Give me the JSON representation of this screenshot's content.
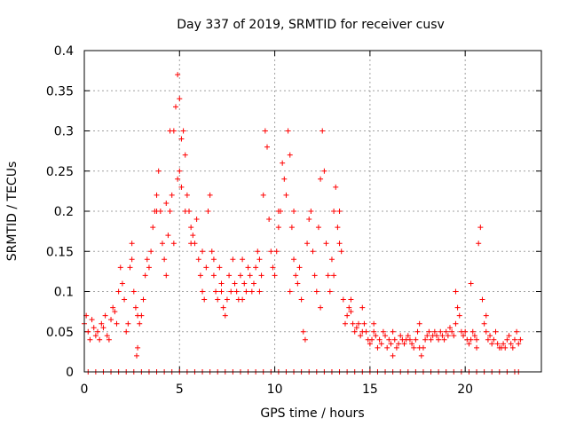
{
  "chart_data": {
    "type": "scatter",
    "title": "Day 337 of 2019, SRMTID for receiver cusv",
    "xlabel": "GPS time / hours",
    "ylabel": "SRMTID / TECUs",
    "xlim": [
      0,
      24
    ],
    "ylim": [
      0,
      0.4
    ],
    "xticks": [
      0,
      5,
      10,
      15,
      20
    ],
    "yticks": [
      0,
      0.05,
      0.1,
      0.15,
      0.2,
      0.25,
      0.3,
      0.35,
      0.4
    ],
    "xtick_labels": [
      "0",
      "5",
      "10",
      "15",
      "20"
    ],
    "ytick_labels": [
      "0",
      "0.05",
      "0.1",
      "0.15",
      "0.2",
      "0.25",
      "0.3",
      "0.35",
      "0.4"
    ],
    "grid": true,
    "marker": "+",
    "color": "#ff0000",
    "series": [
      {
        "name": "SRMTID",
        "points": [
          [
            0.0,
            0.06
          ],
          [
            0.1,
            0.07
          ],
          [
            0.2,
            0.05
          ],
          [
            0.3,
            0.04
          ],
          [
            0.4,
            0.065
          ],
          [
            0.5,
            0.055
          ],
          [
            0.6,
            0.045
          ],
          [
            0.7,
            0.05
          ],
          [
            0.8,
            0.04
          ],
          [
            0.9,
            0.06
          ],
          [
            1.0,
            0.055
          ],
          [
            1.1,
            0.07
          ],
          [
            1.2,
            0.045
          ],
          [
            1.3,
            0.04
          ],
          [
            1.4,
            0.065
          ],
          [
            1.5,
            0.08
          ],
          [
            1.6,
            0.075
          ],
          [
            1.7,
            0.06
          ],
          [
            1.8,
            0.1
          ],
          [
            1.9,
            0.13
          ],
          [
            2.0,
            0.11
          ],
          [
            2.1,
            0.09
          ],
          [
            2.2,
            0.05
          ],
          [
            2.3,
            0.06
          ],
          [
            2.4,
            0.13
          ],
          [
            2.5,
            0.14
          ],
          [
            2.6,
            0.1
          ],
          [
            2.7,
            0.08
          ],
          [
            2.8,
            0.07
          ],
          [
            2.9,
            0.06
          ],
          [
            3.0,
            0.07
          ],
          [
            3.1,
            0.09
          ],
          [
            3.2,
            0.12
          ],
          [
            3.3,
            0.14
          ],
          [
            3.4,
            0.13
          ],
          [
            3.5,
            0.15
          ],
          [
            3.6,
            0.18
          ],
          [
            3.7,
            0.2
          ],
          [
            3.8,
            0.22
          ],
          [
            3.9,
            0.25
          ],
          [
            4.0,
            0.2
          ],
          [
            4.1,
            0.16
          ],
          [
            4.2,
            0.14
          ],
          [
            4.3,
            0.12
          ],
          [
            4.4,
            0.17
          ],
          [
            4.5,
            0.2
          ],
          [
            4.6,
            0.22
          ],
          [
            4.7,
            0.3
          ],
          [
            4.8,
            0.33
          ],
          [
            4.9,
            0.37
          ],
          [
            5.0,
            0.34
          ],
          [
            5.1,
            0.29
          ],
          [
            5.2,
            0.3
          ],
          [
            5.3,
            0.27
          ],
          [
            5.4,
            0.22
          ],
          [
            5.5,
            0.2
          ],
          [
            5.6,
            0.18
          ],
          [
            5.7,
            0.17
          ],
          [
            5.8,
            0.16
          ],
          [
            5.9,
            0.19
          ],
          [
            6.0,
            0.14
          ],
          [
            6.1,
            0.12
          ],
          [
            6.2,
            0.1
          ],
          [
            6.3,
            0.09
          ],
          [
            6.4,
            0.13
          ],
          [
            6.5,
            0.2
          ],
          [
            6.6,
            0.22
          ],
          [
            6.7,
            0.15
          ],
          [
            6.8,
            0.12
          ],
          [
            6.9,
            0.1
          ],
          [
            7.0,
            0.09
          ],
          [
            7.1,
            0.13
          ],
          [
            7.2,
            0.11
          ],
          [
            7.3,
            0.08
          ],
          [
            7.4,
            0.07
          ],
          [
            7.5,
            0.09
          ],
          [
            7.6,
            0.12
          ],
          [
            7.7,
            0.1
          ],
          [
            7.8,
            0.14
          ],
          [
            7.9,
            0.11
          ],
          [
            8.0,
            0.1
          ],
          [
            8.1,
            0.09
          ],
          [
            8.2,
            0.12
          ],
          [
            8.3,
            0.14
          ],
          [
            8.4,
            0.11
          ],
          [
            8.5,
            0.1
          ],
          [
            8.6,
            0.13
          ],
          [
            8.7,
            0.12
          ],
          [
            8.8,
            0.1
          ],
          [
            8.9,
            0.11
          ],
          [
            9.0,
            0.13
          ],
          [
            9.1,
            0.15
          ],
          [
            9.2,
            0.14
          ],
          [
            9.3,
            0.12
          ],
          [
            9.4,
            0.22
          ],
          [
            9.5,
            0.3
          ],
          [
            9.6,
            0.28
          ],
          [
            9.7,
            0.19
          ],
          [
            9.8,
            0.15
          ],
          [
            9.9,
            0.13
          ],
          [
            10.0,
            0.12
          ],
          [
            10.1,
            0.15
          ],
          [
            10.2,
            0.18
          ],
          [
            10.3,
            0.2
          ],
          [
            10.4,
            0.26
          ],
          [
            10.5,
            0.24
          ],
          [
            10.6,
            0.22
          ],
          [
            10.7,
            0.3
          ],
          [
            10.8,
            0.27
          ],
          [
            10.9,
            0.18
          ],
          [
            11.0,
            0.14
          ],
          [
            11.1,
            0.12
          ],
          [
            11.2,
            0.11
          ],
          [
            11.3,
            0.13
          ],
          [
            11.4,
            0.09
          ],
          [
            11.5,
            0.05
          ],
          [
            11.6,
            0.04
          ],
          [
            11.7,
            0.16
          ],
          [
            11.8,
            0.19
          ],
          [
            11.9,
            0.2
          ],
          [
            12.0,
            0.15
          ],
          [
            12.1,
            0.12
          ],
          [
            12.2,
            0.1
          ],
          [
            12.3,
            0.18
          ],
          [
            12.4,
            0.24
          ],
          [
            12.5,
            0.3
          ],
          [
            12.6,
            0.25
          ],
          [
            12.7,
            0.16
          ],
          [
            12.8,
            0.12
          ],
          [
            12.9,
            0.1
          ],
          [
            13.0,
            0.14
          ],
          [
            13.1,
            0.2
          ],
          [
            13.2,
            0.23
          ],
          [
            13.3,
            0.18
          ],
          [
            13.4,
            0.16
          ],
          [
            13.5,
            0.15
          ],
          [
            13.6,
            0.09
          ],
          [
            13.7,
            0.06
          ],
          [
            13.8,
            0.07
          ],
          [
            13.9,
            0.08
          ],
          [
            14.0,
            0.075
          ],
          [
            14.1,
            0.06
          ],
          [
            14.2,
            0.05
          ],
          [
            14.3,
            0.055
          ],
          [
            14.4,
            0.06
          ],
          [
            14.5,
            0.045
          ],
          [
            14.6,
            0.05
          ],
          [
            14.7,
            0.06
          ],
          [
            14.8,
            0.05
          ],
          [
            14.9,
            0.04
          ],
          [
            15.0,
            0.035
          ],
          [
            15.1,
            0.04
          ],
          [
            15.2,
            0.05
          ],
          [
            15.3,
            0.045
          ],
          [
            15.4,
            0.03
          ],
          [
            15.5,
            0.04
          ],
          [
            15.6,
            0.035
          ],
          [
            15.7,
            0.05
          ],
          [
            15.8,
            0.045
          ],
          [
            15.9,
            0.03
          ],
          [
            16.0,
            0.04
          ],
          [
            16.1,
            0.035
          ],
          [
            16.2,
            0.05
          ],
          [
            16.3,
            0.04
          ],
          [
            16.4,
            0.03
          ],
          [
            16.5,
            0.035
          ],
          [
            16.6,
            0.045
          ],
          [
            16.7,
            0.04
          ],
          [
            16.8,
            0.035
          ],
          [
            16.9,
            0.04
          ],
          [
            17.0,
            0.045
          ],
          [
            17.1,
            0.04
          ],
          [
            17.2,
            0.035
          ],
          [
            17.3,
            0.03
          ],
          [
            17.4,
            0.04
          ],
          [
            17.5,
            0.05
          ],
          [
            17.6,
            0.03
          ],
          [
            17.7,
            0.02
          ],
          [
            17.8,
            0.03
          ],
          [
            17.9,
            0.04
          ],
          [
            18.0,
            0.045
          ],
          [
            18.1,
            0.05
          ],
          [
            18.2,
            0.04
          ],
          [
            18.3,
            0.045
          ],
          [
            18.4,
            0.05
          ],
          [
            18.5,
            0.045
          ],
          [
            18.6,
            0.04
          ],
          [
            18.7,
            0.05
          ],
          [
            18.8,
            0.045
          ],
          [
            18.9,
            0.04
          ],
          [
            19.0,
            0.05
          ],
          [
            19.1,
            0.045
          ],
          [
            19.2,
            0.055
          ],
          [
            19.3,
            0.05
          ],
          [
            19.4,
            0.045
          ],
          [
            19.5,
            0.06
          ],
          [
            19.6,
            0.08
          ],
          [
            19.7,
            0.07
          ],
          [
            19.8,
            0.05
          ],
          [
            19.9,
            0.045
          ],
          [
            20.0,
            0.05
          ],
          [
            20.1,
            0.04
          ],
          [
            20.2,
            0.035
          ],
          [
            20.3,
            0.04
          ],
          [
            20.4,
            0.05
          ],
          [
            20.5,
            0.045
          ],
          [
            20.6,
            0.04
          ],
          [
            20.7,
            0.16
          ],
          [
            20.8,
            0.18
          ],
          [
            20.9,
            0.09
          ],
          [
            21.0,
            0.06
          ],
          [
            21.1,
            0.05
          ],
          [
            21.2,
            0.04
          ],
          [
            21.3,
            0.045
          ],
          [
            21.4,
            0.035
          ],
          [
            21.5,
            0.04
          ],
          [
            21.6,
            0.05
          ],
          [
            21.7,
            0.035
          ],
          [
            21.8,
            0.03
          ],
          [
            21.9,
            0.03
          ],
          [
            22.0,
            0.035
          ],
          [
            22.1,
            0.03
          ],
          [
            22.2,
            0.04
          ],
          [
            22.3,
            0.045
          ],
          [
            22.4,
            0.035
          ],
          [
            22.5,
            0.03
          ],
          [
            22.6,
            0.04
          ],
          [
            22.7,
            0.05
          ],
          [
            22.8,
            0.035
          ],
          [
            22.9,
            0.04
          ],
          [
            2.5,
            0.16
          ],
          [
            3.8,
            0.2
          ],
          [
            4.3,
            0.21
          ],
          [
            4.5,
            0.3
          ],
          [
            5.0,
            0.25
          ],
          [
            5.1,
            0.23
          ],
          [
            5.3,
            0.2
          ],
          [
            5.6,
            0.16
          ],
          [
            6.2,
            0.15
          ],
          [
            6.8,
            0.14
          ],
          [
            7.2,
            0.1
          ],
          [
            8.3,
            0.09
          ],
          [
            9.2,
            0.1
          ],
          [
            10.2,
            0.2
          ],
          [
            10.8,
            0.1
          ],
          [
            11.0,
            0.2
          ],
          [
            12.4,
            0.08
          ],
          [
            13.1,
            0.12
          ],
          [
            13.4,
            0.2
          ],
          [
            14.0,
            0.09
          ],
          [
            19.5,
            0.1
          ],
          [
            20.3,
            0.11
          ],
          [
            20.6,
            0.03
          ],
          [
            21.1,
            0.07
          ],
          [
            17.6,
            0.06
          ],
          [
            16.2,
            0.02
          ],
          [
            15.2,
            0.06
          ],
          [
            14.6,
            0.08
          ],
          [
            4.7,
            0.16
          ],
          [
            4.9,
            0.24
          ],
          [
            0.2,
            0.0
          ],
          [
            0.6,
            0.0
          ],
          [
            1.0,
            0.0
          ],
          [
            1.4,
            0.0
          ],
          [
            1.8,
            0.0
          ],
          [
            2.2,
            0.0
          ],
          [
            2.6,
            0.0
          ],
          [
            3.0,
            0.0
          ],
          [
            3.4,
            0.0
          ],
          [
            3.8,
            0.0
          ],
          [
            4.2,
            0.0
          ],
          [
            4.6,
            0.0
          ],
          [
            5.0,
            0.0
          ],
          [
            5.4,
            0.0
          ],
          [
            5.8,
            0.0
          ],
          [
            6.2,
            0.0
          ],
          [
            6.6,
            0.0
          ],
          [
            7.0,
            0.0
          ],
          [
            7.4,
            0.0
          ],
          [
            7.8,
            0.0
          ],
          [
            8.2,
            0.0
          ],
          [
            8.6,
            0.0
          ],
          [
            9.0,
            0.0
          ],
          [
            9.4,
            0.0
          ],
          [
            9.8,
            0.0
          ],
          [
            10.2,
            0.0
          ],
          [
            10.6,
            0.0
          ],
          [
            11.0,
            0.0
          ],
          [
            11.4,
            0.0
          ],
          [
            11.8,
            0.0
          ],
          [
            12.2,
            0.0
          ],
          [
            12.6,
            0.0
          ],
          [
            13.0,
            0.0
          ],
          [
            13.4,
            0.0
          ],
          [
            13.8,
            0.0
          ],
          [
            14.2,
            0.0
          ],
          [
            14.6,
            0.0
          ],
          [
            15.0,
            0.0
          ],
          [
            15.4,
            0.0
          ],
          [
            15.8,
            0.0
          ],
          [
            16.2,
            0.0
          ],
          [
            16.6,
            0.0
          ],
          [
            17.0,
            0.0
          ],
          [
            17.4,
            0.0
          ],
          [
            17.8,
            0.0
          ],
          [
            18.2,
            0.0
          ],
          [
            18.6,
            0.0
          ],
          [
            19.0,
            0.0
          ],
          [
            19.4,
            0.0
          ],
          [
            19.8,
            0.0
          ],
          [
            20.2,
            0.0
          ],
          [
            20.6,
            0.0
          ],
          [
            21.0,
            0.0
          ],
          [
            21.4,
            0.0
          ],
          [
            21.8,
            0.0
          ],
          [
            22.2,
            0.0
          ],
          [
            22.6,
            0.0
          ],
          [
            2.75,
            0.02
          ],
          [
            2.8,
            0.03
          ],
          [
            22.8,
            0.0
          ]
        ]
      }
    ]
  }
}
